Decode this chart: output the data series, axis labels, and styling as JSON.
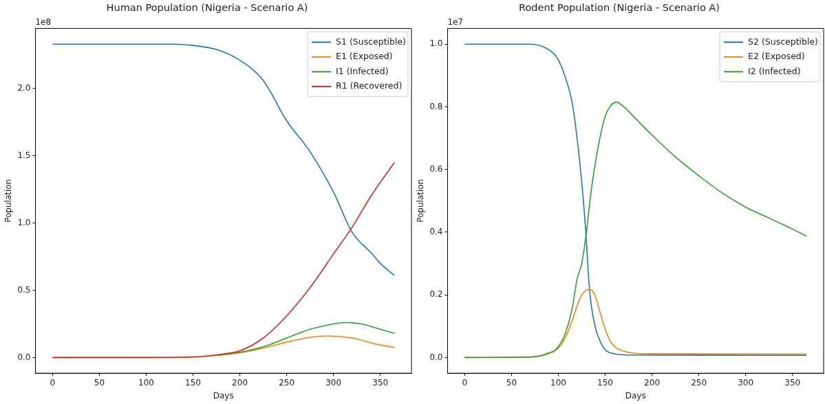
{
  "chart_data": [
    {
      "type": "line",
      "title": "Human Population (Nigeria - Scenario A)",
      "xlabel": "Days",
      "ylabel": "Population",
      "annotations": [
        "1e8"
      ],
      "xlim": [
        -18.25,
        383.25
      ],
      "xticks": [
        0,
        50,
        100,
        150,
        200,
        250,
        300,
        350
      ],
      "ylim": [
        -0.1165,
        2.4465
      ],
      "yticks": [
        {
          "value": 0,
          "label": "0.0"
        },
        {
          "value": 0.5,
          "label": "0.5"
        },
        {
          "value": 1,
          "label": "1.0"
        },
        {
          "value": 1.5,
          "label": "1.5"
        },
        {
          "value": 2,
          "label": "2.0"
        }
      ],
      "grid": false,
      "legend": "top right",
      "series": [
        {
          "name": "S1 (Susceptible)",
          "color": "#1f77b4",
          "x": [
            0,
            50,
            100,
            125,
            150,
            175,
            200,
            225,
            250,
            275,
            300,
            320,
            340,
            350,
            365
          ],
          "values": [
            2.33,
            2.33,
            2.33,
            2.33,
            2.32,
            2.29,
            2.21,
            2.06,
            1.76,
            1.53,
            1.23,
            0.93,
            0.78,
            0.7,
            0.61
          ]
        },
        {
          "name": "E1 (Exposed)",
          "color": "#ff7f0e",
          "x": [
            0,
            100,
            150,
            175,
            200,
            225,
            250,
            275,
            293,
            320,
            345,
            365
          ],
          "values": [
            0,
            0,
            0.005,
            0.015,
            0.035,
            0.07,
            0.115,
            0.15,
            0.16,
            0.145,
            0.1,
            0.075
          ]
        },
        {
          "name": "I1 (Infected)",
          "color": "#2ca02c",
          "x": [
            175,
            200,
            225,
            250,
            275,
            300,
            312,
            330,
            350,
            365
          ],
          "values": [
            0.017,
            0.04,
            0.08,
            0.145,
            0.21,
            0.25,
            0.26,
            0.25,
            0.21,
            0.18
          ]
        },
        {
          "name": "R1 (Recovered)",
          "color": "#d62728",
          "x": [
            0,
            100,
            150,
            175,
            200,
            225,
            250,
            275,
            300,
            320,
            340,
            365
          ],
          "values": [
            0,
            0,
            0.003,
            0.02,
            0.05,
            0.145,
            0.31,
            0.52,
            0.77,
            0.97,
            1.2,
            1.45
          ]
        }
      ]
    },
    {
      "type": "line",
      "title": "Rodent Population (Nigeria - Scenario A)",
      "xlabel": "Days",
      "ylabel": "Population",
      "annotations": [
        "1e7"
      ],
      "xlim": [
        -18.25,
        383.25
      ],
      "xticks": [
        0,
        50,
        100,
        150,
        200,
        250,
        300,
        350
      ],
      "ylim": [
        -0.05,
        1.05
      ],
      "yticks": [
        {
          "value": 0,
          "label": "0.0"
        },
        {
          "value": 0.2,
          "label": "0.2"
        },
        {
          "value": 0.4,
          "label": "0.4"
        },
        {
          "value": 0.6,
          "label": "0.6"
        },
        {
          "value": 0.8,
          "label": "0.8"
        },
        {
          "value": 1,
          "label": "1.0"
        }
      ],
      "grid": false,
      "legend": "top right",
      "series": [
        {
          "name": "S2 (Susceptible)",
          "color": "#1f77b4",
          "x": [
            0,
            70,
            85,
            95,
            100,
            105,
            110,
            115,
            120,
            125,
            130,
            132,
            135,
            140,
            145,
            150,
            160,
            180,
            365
          ],
          "values": [
            1,
            1,
            0.99,
            0.97,
            0.95,
            0.915,
            0.87,
            0.81,
            0.7,
            0.56,
            0.37,
            0.27,
            0.17,
            0.09,
            0.05,
            0.025,
            0.012,
            0.008,
            0.007
          ]
        },
        {
          "name": "E2 (Exposed)",
          "color": "#ff7f0e",
          "x": [
            0,
            70,
            80,
            90,
            100,
            105,
            110,
            115,
            120,
            125,
            130,
            133,
            137,
            140,
            145,
            150,
            155,
            160,
            170,
            180,
            200,
            365
          ],
          "values": [
            0,
            0.001,
            0.005,
            0.013,
            0.03,
            0.05,
            0.08,
            0.12,
            0.165,
            0.2,
            0.215,
            0.217,
            0.21,
            0.19,
            0.14,
            0.09,
            0.055,
            0.035,
            0.02,
            0.014,
            0.012,
            0.011
          ]
        },
        {
          "name": "I2 (Infected)",
          "color": "#2ca02c",
          "x": [
            0,
            70,
            80,
            90,
            95,
            100,
            105,
            110,
            115,
            120,
            125,
            130,
            135,
            140,
            145,
            150,
            155,
            162,
            170,
            180,
            200,
            225,
            250,
            275,
            300,
            325,
            350,
            365
          ],
          "values": [
            0,
            0.002,
            0.005,
            0.015,
            0.02,
            0.035,
            0.06,
            0.1,
            0.16,
            0.25,
            0.3,
            0.4,
            0.53,
            0.63,
            0.71,
            0.77,
            0.8,
            0.815,
            0.8,
            0.77,
            0.71,
            0.64,
            0.58,
            0.525,
            0.48,
            0.445,
            0.41,
            0.387
          ]
        }
      ]
    }
  ]
}
